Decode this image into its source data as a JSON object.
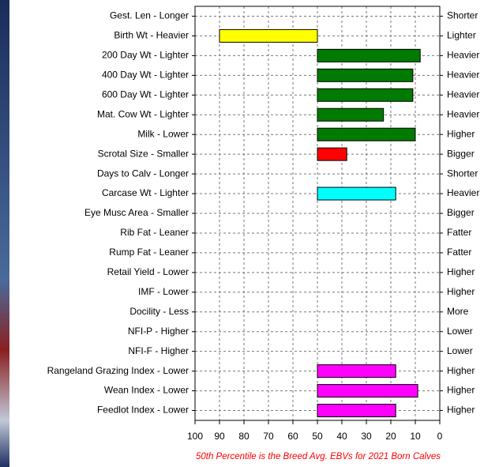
{
  "chart_data": {
    "type": "bar",
    "orientation": "horizontal",
    "categories": [
      "Gest. Len - Longer",
      "Birth Wt - Heavier",
      "200 Day Wt - Lighter",
      "400 Day Wt - Lighter",
      "600 Day Wt - Lighter",
      "Mat. Cow Wt - Lighter",
      "Milk - Lower",
      "Scrotal Size - Smaller",
      "Days to Calv - Longer",
      "Carcase Wt - Lighter",
      "Eye Musc Area - Smaller",
      "Rib Fat - Leaner",
      "Rump Fat - Leaner",
      "Retail Yield - Lower",
      "IMF - Lower",
      "Docility - Less",
      "NFI-P - Higher",
      "NFI-F - Higher",
      "Rangeland Grazing Index - Lower",
      "Wean Index - Lower",
      "Feedlot Index - Lower"
    ],
    "right_labels": [
      "Shorter",
      "Lighter",
      "Heavier",
      "Heavier",
      "Heavier",
      "Heavier",
      "Higher",
      "Bigger",
      "Shorter",
      "Heavier",
      "Bigger",
      "Fatter",
      "Fatter",
      "Higher",
      "Higher",
      "More",
      "Lower",
      "Lower",
      "Higher",
      "Higher",
      "Higher"
    ],
    "values": [
      null,
      90,
      8,
      11,
      11,
      23,
      10,
      38,
      null,
      18,
      null,
      null,
      null,
      null,
      null,
      null,
      null,
      null,
      18,
      9,
      18
    ],
    "colors": [
      null,
      "#ffff00",
      "#007a00",
      "#007a00",
      "#007a00",
      "#007a00",
      "#007a00",
      "#ff0000",
      null,
      "#00ffff",
      null,
      null,
      null,
      null,
      null,
      null,
      null,
      null,
      "#ff00ff",
      "#ff00ff",
      "#ff00ff"
    ],
    "bar_base": 50,
    "xlim": [
      100,
      0
    ],
    "xticks": [
      100,
      90,
      80,
      70,
      60,
      50,
      40,
      30,
      20,
      10,
      0
    ],
    "grid": true,
    "note": "50th Percentile is the Breed Avg. EBVs for 2021 Born Calves"
  }
}
